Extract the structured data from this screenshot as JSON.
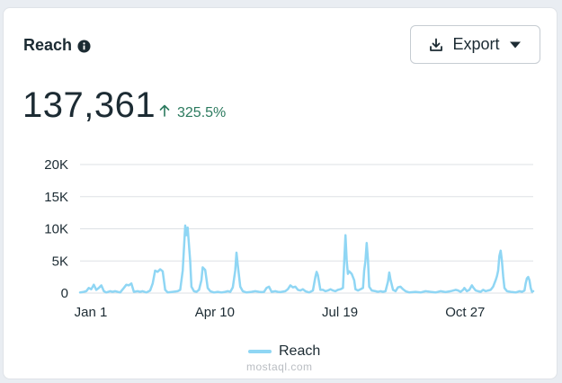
{
  "card": {
    "title": "Reach",
    "info_icon": "info-circle-icon"
  },
  "export": {
    "label": "Export",
    "icon": "download-icon",
    "caret_icon": "caret-down-icon"
  },
  "metric": {
    "value": "137,361",
    "change": "325.5%",
    "change_icon": "arrow-up-icon",
    "change_color": "#2b7a5e"
  },
  "watermark": "mostaql.com",
  "chart_data": {
    "type": "line",
    "title": "Reach",
    "xlabel": "",
    "ylabel": "",
    "ylim": [
      0,
      20000
    ],
    "yticks": [
      0,
      5000,
      10000,
      15000,
      20000
    ],
    "ytick_labels": [
      "0",
      "5K",
      "10K",
      "15K",
      "20K"
    ],
    "xlim": [
      0,
      362
    ],
    "xticks": [
      0,
      99,
      199,
      299
    ],
    "xtick_labels": [
      "Jan 1",
      "Apr 10",
      "Jul 19",
      "Oct 27"
    ],
    "grid": true,
    "color": "#8fd6f4",
    "legend": [
      "Reach"
    ],
    "legend_position": "bottom",
    "series": [
      {
        "name": "Reach",
        "points": [
          [
            0,
            100
          ],
          [
            3,
            200
          ],
          [
            5,
            300
          ],
          [
            7,
            800
          ],
          [
            9,
            600
          ],
          [
            11,
            1300
          ],
          [
            13,
            500
          ],
          [
            15,
            800
          ],
          [
            17,
            1200
          ],
          [
            19,
            300
          ],
          [
            21,
            100
          ],
          [
            24,
            300
          ],
          [
            26,
            200
          ],
          [
            28,
            300
          ],
          [
            32,
            100
          ],
          [
            35,
            800
          ],
          [
            37,
            1300
          ],
          [
            39,
            1200
          ],
          [
            41,
            1500
          ],
          [
            43,
            200
          ],
          [
            46,
            300
          ],
          [
            48,
            200
          ],
          [
            50,
            300
          ],
          [
            53,
            100
          ],
          [
            56,
            400
          ],
          [
            58,
            1500
          ],
          [
            60,
            3500
          ],
          [
            62,
            3300
          ],
          [
            64,
            3700
          ],
          [
            66,
            3400
          ],
          [
            68,
            500
          ],
          [
            70,
            100
          ],
          [
            74,
            200
          ],
          [
            78,
            300
          ],
          [
            80,
            500
          ],
          [
            82,
            3500
          ],
          [
            84,
            10500
          ],
          [
            85,
            9000
          ],
          [
            86,
            10200
          ],
          [
            88,
            5000
          ],
          [
            89,
            1000
          ],
          [
            91,
            300
          ],
          [
            93,
            200
          ],
          [
            95,
            500
          ],
          [
            97,
            2000
          ],
          [
            98,
            4000
          ],
          [
            100,
            3600
          ],
          [
            102,
            800
          ],
          [
            104,
            300
          ],
          [
            107,
            100
          ],
          [
            110,
            200
          ],
          [
            113,
            100
          ],
          [
            116,
            200
          ],
          [
            118,
            300
          ],
          [
            120,
            200
          ],
          [
            122,
            900
          ],
          [
            124,
            3500
          ],
          [
            125,
            6300
          ],
          [
            126,
            4400
          ],
          [
            128,
            1000
          ],
          [
            130,
            300
          ],
          [
            133,
            100
          ],
          [
            137,
            200
          ],
          [
            140,
            300
          ],
          [
            143,
            200
          ],
          [
            145,
            150
          ],
          [
            147,
            200
          ],
          [
            149,
            800
          ],
          [
            151,
            1000
          ],
          [
            153,
            200
          ],
          [
            156,
            300
          ],
          [
            158,
            200
          ],
          [
            160,
            150
          ],
          [
            164,
            300
          ],
          [
            166,
            600
          ],
          [
            168,
            1200
          ],
          [
            170,
            900
          ],
          [
            172,
            1000
          ],
          [
            174,
            500
          ],
          [
            176,
            400
          ],
          [
            178,
            600
          ],
          [
            180,
            300
          ],
          [
            183,
            100
          ],
          [
            186,
            400
          ],
          [
            188,
            2500
          ],
          [
            189,
            3300
          ],
          [
            190,
            2800
          ],
          [
            192,
            500
          ],
          [
            194,
            500
          ],
          [
            196,
            300
          ],
          [
            198,
            400
          ],
          [
            200,
            600
          ],
          [
            202,
            400
          ],
          [
            204,
            300
          ],
          [
            206,
            500
          ],
          [
            208,
            600
          ],
          [
            210,
            800
          ],
          [
            212,
            9000
          ],
          [
            213,
            5000
          ],
          [
            214,
            3000
          ],
          [
            215,
            3400
          ],
          [
            217,
            3000
          ],
          [
            219,
            2000
          ],
          [
            220,
            600
          ],
          [
            222,
            400
          ],
          [
            224,
            600
          ],
          [
            226,
            800
          ],
          [
            227,
            3500
          ],
          [
            228,
            5000
          ],
          [
            229,
            7800
          ],
          [
            230,
            5200
          ],
          [
            231,
            1000
          ],
          [
            233,
            400
          ],
          [
            236,
            300
          ],
          [
            238,
            200
          ],
          [
            240,
            300
          ],
          [
            242,
            200
          ],
          [
            244,
            300
          ],
          [
            246,
            1800
          ],
          [
            247,
            3200
          ],
          [
            248,
            2100
          ],
          [
            250,
            500
          ],
          [
            252,
            300
          ],
          [
            254,
            900
          ],
          [
            256,
            1000
          ],
          [
            258,
            600
          ],
          [
            260,
            300
          ],
          [
            263,
            100
          ],
          [
            268,
            200
          ],
          [
            272,
            100
          ],
          [
            276,
            300
          ],
          [
            280,
            200
          ],
          [
            284,
            100
          ],
          [
            288,
            300
          ],
          [
            292,
            150
          ],
          [
            296,
            300
          ],
          [
            300,
            500
          ],
          [
            302,
            400
          ],
          [
            304,
            200
          ],
          [
            306,
            500
          ],
          [
            307,
            800
          ],
          [
            309,
            300
          ],
          [
            311,
            500
          ],
          [
            313,
            1200
          ],
          [
            314,
            900
          ],
          [
            316,
            400
          ],
          [
            318,
            300
          ],
          [
            320,
            200
          ],
          [
            322,
            500
          ],
          [
            324,
            300
          ],
          [
            326,
            400
          ],
          [
            328,
            500
          ],
          [
            330,
            1000
          ],
          [
            332,
            2000
          ],
          [
            333,
            2600
          ],
          [
            334,
            3500
          ],
          [
            335,
            5800
          ],
          [
            336,
            6600
          ],
          [
            337,
            5000
          ],
          [
            338,
            2600
          ],
          [
            339,
            800
          ],
          [
            341,
            300
          ],
          [
            344,
            200
          ],
          [
            348,
            100
          ],
          [
            351,
            300
          ],
          [
            353,
            200
          ],
          [
            355,
            400
          ],
          [
            356,
            1500
          ],
          [
            357,
            2300
          ],
          [
            358,
            2500
          ],
          [
            359,
            2000
          ],
          [
            360,
            800
          ],
          [
            361,
            200
          ],
          [
            362,
            300
          ]
        ]
      }
    ]
  }
}
